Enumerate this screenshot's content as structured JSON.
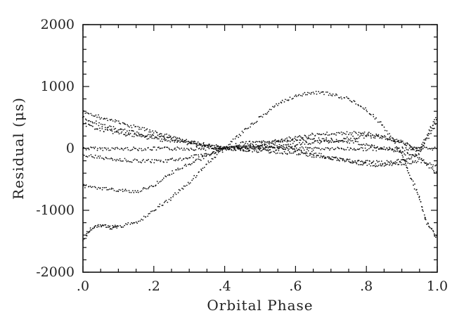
{
  "chart_data": {
    "type": "scatter",
    "title": "",
    "xlabel": "Orbital Phase",
    "ylabel": "Residual (μs)",
    "xlim": [
      0,
      1
    ],
    "ylim": [
      -2000,
      2000
    ],
    "grid": false,
    "x_ticks": [
      {
        "value": 0.0,
        "label": ".0"
      },
      {
        "value": 0.2,
        "label": ".2"
      },
      {
        "value": 0.4,
        "label": ".4"
      },
      {
        "value": 0.6,
        "label": ".6"
      },
      {
        "value": 0.8,
        "label": ".8"
      },
      {
        "value": 1.0,
        "label": "1.0"
      }
    ],
    "y_ticks": [
      {
        "value": 2000,
        "label": "2000"
      },
      {
        "value": 1000,
        "label": "1000"
      },
      {
        "value": 0,
        "label": "0"
      },
      {
        "value": -1000,
        "label": "-1000"
      },
      {
        "value": -2000,
        "label": "-2000"
      }
    ],
    "series": [
      {
        "x": [
          0,
          0.05,
          0.1,
          0.15,
          0.2,
          0.25,
          0.3,
          0.35,
          0.4,
          0.45,
          0.5,
          0.55,
          0.6,
          0.65,
          0.7,
          0.75,
          0.8,
          0.85,
          0.9,
          0.95,
          1.0
        ],
        "y": [
          0,
          -5,
          -8,
          -8,
          -6,
          -5,
          -3,
          -2,
          0,
          0,
          0,
          0,
          0,
          -3,
          -5,
          -8,
          -10,
          -10,
          -8,
          -5,
          0
        ]
      },
      {
        "x": [
          0,
          0.05,
          0.1,
          0.15,
          0.2,
          0.25,
          0.3,
          0.35,
          0.4,
          0.45,
          0.5,
          0.55,
          0.6,
          0.65,
          0.7,
          0.75,
          0.8,
          0.85,
          0.9,
          0.95,
          1.0
        ],
        "y": [
          500,
          380,
          300,
          250,
          200,
          160,
          110,
          60,
          0,
          -20,
          -40,
          -60,
          -80,
          -120,
          -160,
          -200,
          -220,
          -230,
          -200,
          -80,
          550
        ]
      },
      {
        "x": [
          0,
          0.05,
          0.1,
          0.15,
          0.2,
          0.25,
          0.3,
          0.35,
          0.4,
          0.45,
          0.5,
          0.55,
          0.6,
          0.65,
          0.7,
          0.75,
          0.8,
          0.85,
          0.9,
          0.95,
          1.0
        ],
        "y": [
          400,
          300,
          250,
          200,
          160,
          120,
          80,
          30,
          0,
          10,
          20,
          40,
          60,
          90,
          120,
          160,
          200,
          180,
          100,
          -50,
          400
        ]
      },
      {
        "x": [
          0,
          0.05,
          0.1,
          0.15,
          0.2,
          0.25,
          0.3,
          0.35,
          0.4,
          0.45,
          0.5,
          0.55,
          0.6,
          0.65,
          0.7,
          0.75,
          0.8,
          0.85,
          0.9,
          0.95,
          1.0
        ],
        "y": [
          600,
          500,
          420,
          340,
          260,
          180,
          100,
          40,
          0,
          20,
          60,
          120,
          180,
          220,
          240,
          250,
          240,
          180,
          100,
          -30,
          500
        ]
      },
      {
        "x": [
          0,
          0.05,
          0.1,
          0.15,
          0.2,
          0.25,
          0.3,
          0.35,
          0.4,
          0.45,
          0.5,
          0.55,
          0.6,
          0.65,
          0.7,
          0.75,
          0.8,
          0.85,
          0.9,
          0.95,
          1.0
        ],
        "y": [
          -100,
          -150,
          -180,
          -200,
          -210,
          -190,
          -150,
          -90,
          0,
          80,
          100,
          120,
          140,
          150,
          140,
          110,
          60,
          0,
          -60,
          -150,
          -400
        ]
      },
      {
        "x": [
          0,
          0.05,
          0.1,
          0.15,
          0.2,
          0.25,
          0.3,
          0.35,
          0.4,
          0.45,
          0.5,
          0.55,
          0.6,
          0.65,
          0.7,
          0.75,
          0.8,
          0.85,
          0.9,
          0.95,
          1.0
        ],
        "y": [
          -600,
          -650,
          -680,
          -700,
          -600,
          -400,
          -250,
          -120,
          0,
          30,
          40,
          20,
          -20,
          -80,
          -150,
          -200,
          -260,
          -280,
          -250,
          -200,
          -300
        ]
      },
      {
        "x": [
          0,
          0.02,
          0.05,
          0.08,
          0.1,
          0.15,
          0.2,
          0.25,
          0.3,
          0.35,
          0.4,
          0.45,
          0.5,
          0.55,
          0.6,
          0.65,
          0.7,
          0.75,
          0.8,
          0.85,
          0.9,
          0.92,
          0.95,
          0.97,
          1.0
        ],
        "y": [
          -1500,
          -1300,
          -1250,
          -1280,
          -1260,
          -1200,
          -1000,
          -800,
          -550,
          -250,
          0,
          250,
          500,
          720,
          850,
          900,
          880,
          800,
          620,
          350,
          -100,
          -400,
          -800,
          -1200,
          -1450
        ]
      }
    ]
  }
}
